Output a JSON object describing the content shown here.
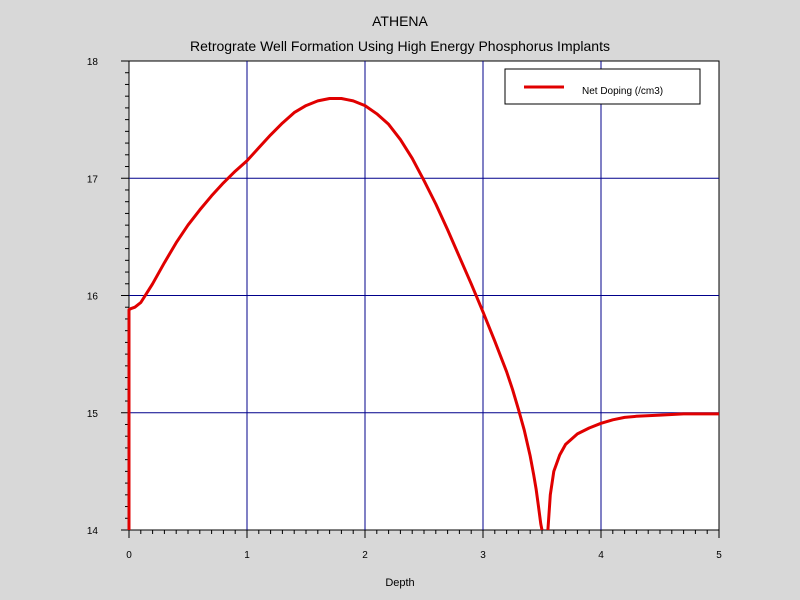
{
  "chart_data": {
    "type": "line",
    "title": "ATHENA",
    "subtitle": "Retrograte Well Formation Using High Energy Phosphorus Implants",
    "xlabel": "Depth",
    "ylabel": "",
    "xlim": [
      0,
      5
    ],
    "ylim": [
      14,
      18
    ],
    "xticks": [
      0,
      1,
      2,
      3,
      4,
      5
    ],
    "yticks": [
      14,
      15,
      16,
      17,
      18
    ],
    "xtick_labels": [
      "0",
      "1",
      "2",
      "3",
      "4",
      "5"
    ],
    "ytick_labels": [
      "14",
      "15",
      "16",
      "17",
      "18"
    ],
    "grid": true,
    "legend_position": "top-right",
    "series": [
      {
        "name": "Net Doping (/cm3)",
        "color": "#e00000",
        "x": [
          0.0,
          0.0,
          0.02,
          0.05,
          0.1,
          0.15,
          0.2,
          0.3,
          0.4,
          0.5,
          0.6,
          0.7,
          0.8,
          0.9,
          1.0,
          1.1,
          1.2,
          1.3,
          1.4,
          1.5,
          1.6,
          1.7,
          1.75,
          1.8,
          1.85,
          1.9,
          2.0,
          2.1,
          2.2,
          2.3,
          2.4,
          2.5,
          2.6,
          2.7,
          2.8,
          2.9,
          3.0,
          3.1,
          3.2,
          3.25,
          3.3,
          3.35,
          3.4,
          3.43,
          3.45,
          3.47,
          3.49,
          3.5
        ],
        "y": [
          14.0,
          15.88,
          15.89,
          15.9,
          15.94,
          16.02,
          16.1,
          16.28,
          16.45,
          16.6,
          16.73,
          16.85,
          16.96,
          17.06,
          17.15,
          17.26,
          17.37,
          17.47,
          17.56,
          17.62,
          17.66,
          17.68,
          17.68,
          17.68,
          17.67,
          17.66,
          17.62,
          17.55,
          17.46,
          17.33,
          17.17,
          16.98,
          16.78,
          16.56,
          16.33,
          16.1,
          15.86,
          15.61,
          15.35,
          15.2,
          15.03,
          14.85,
          14.63,
          14.47,
          14.35,
          14.2,
          14.05,
          14.0
        ]
      },
      {
        "name": "",
        "color": "#e00000",
        "x": [
          3.55,
          3.57,
          3.6,
          3.65,
          3.7,
          3.8,
          3.9,
          4.0,
          4.1,
          4.2,
          4.3,
          4.5,
          4.7,
          5.0
        ],
        "y": [
          14.0,
          14.3,
          14.5,
          14.64,
          14.73,
          14.82,
          14.87,
          14.91,
          14.94,
          14.96,
          14.97,
          14.98,
          14.99,
          14.99
        ]
      }
    ]
  }
}
